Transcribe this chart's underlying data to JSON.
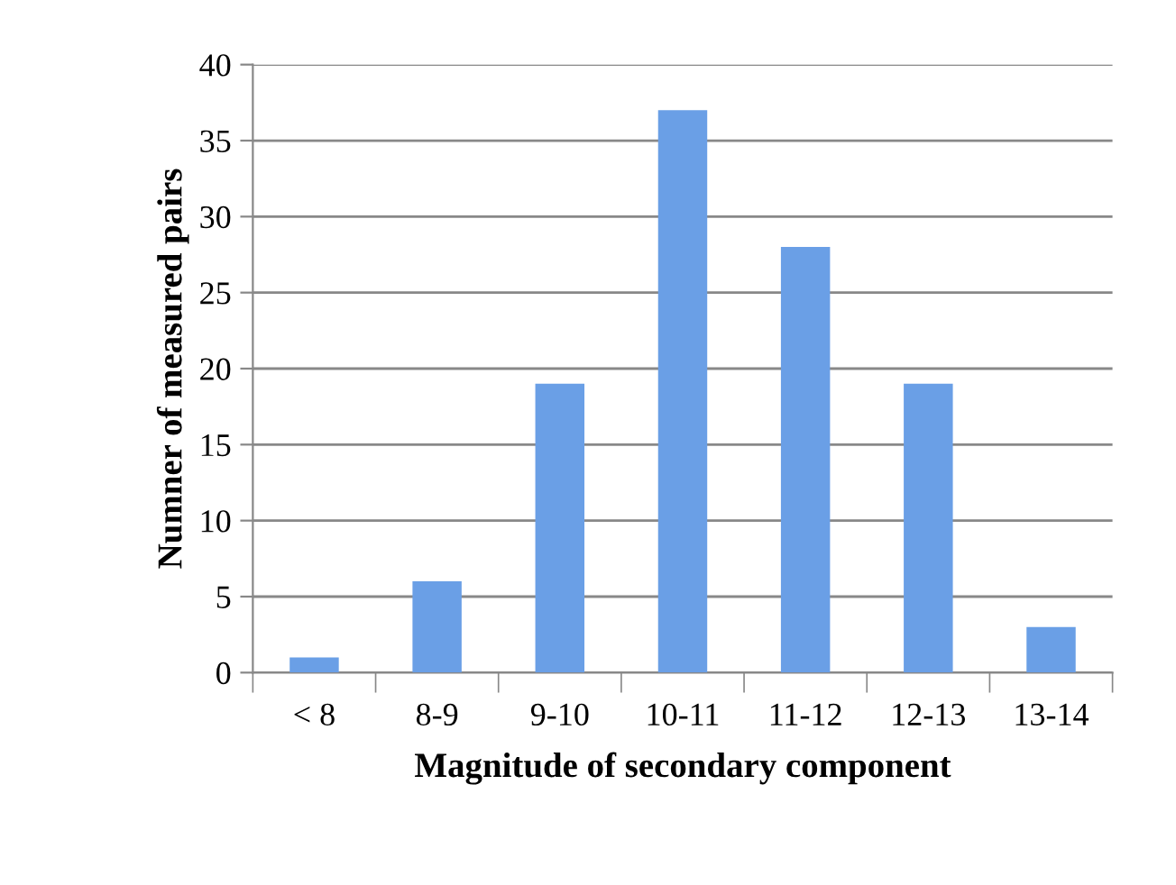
{
  "chart_data": {
    "type": "bar",
    "xlabel": "Magnitude of secondary component",
    "ylabel": "Numner of measured pairs",
    "categories": [
      "< 8",
      "8-9",
      "9-10",
      "10-11",
      "11-12",
      "12-13",
      "13-14"
    ],
    "values": [
      1,
      6,
      19,
      37,
      28,
      19,
      3
    ],
    "color": "#6a9fe6",
    "ylim": [
      0,
      40
    ],
    "yticks": [
      0,
      5,
      10,
      15,
      20,
      25,
      30,
      35,
      40
    ],
    "grid": "y",
    "legend": false
  }
}
